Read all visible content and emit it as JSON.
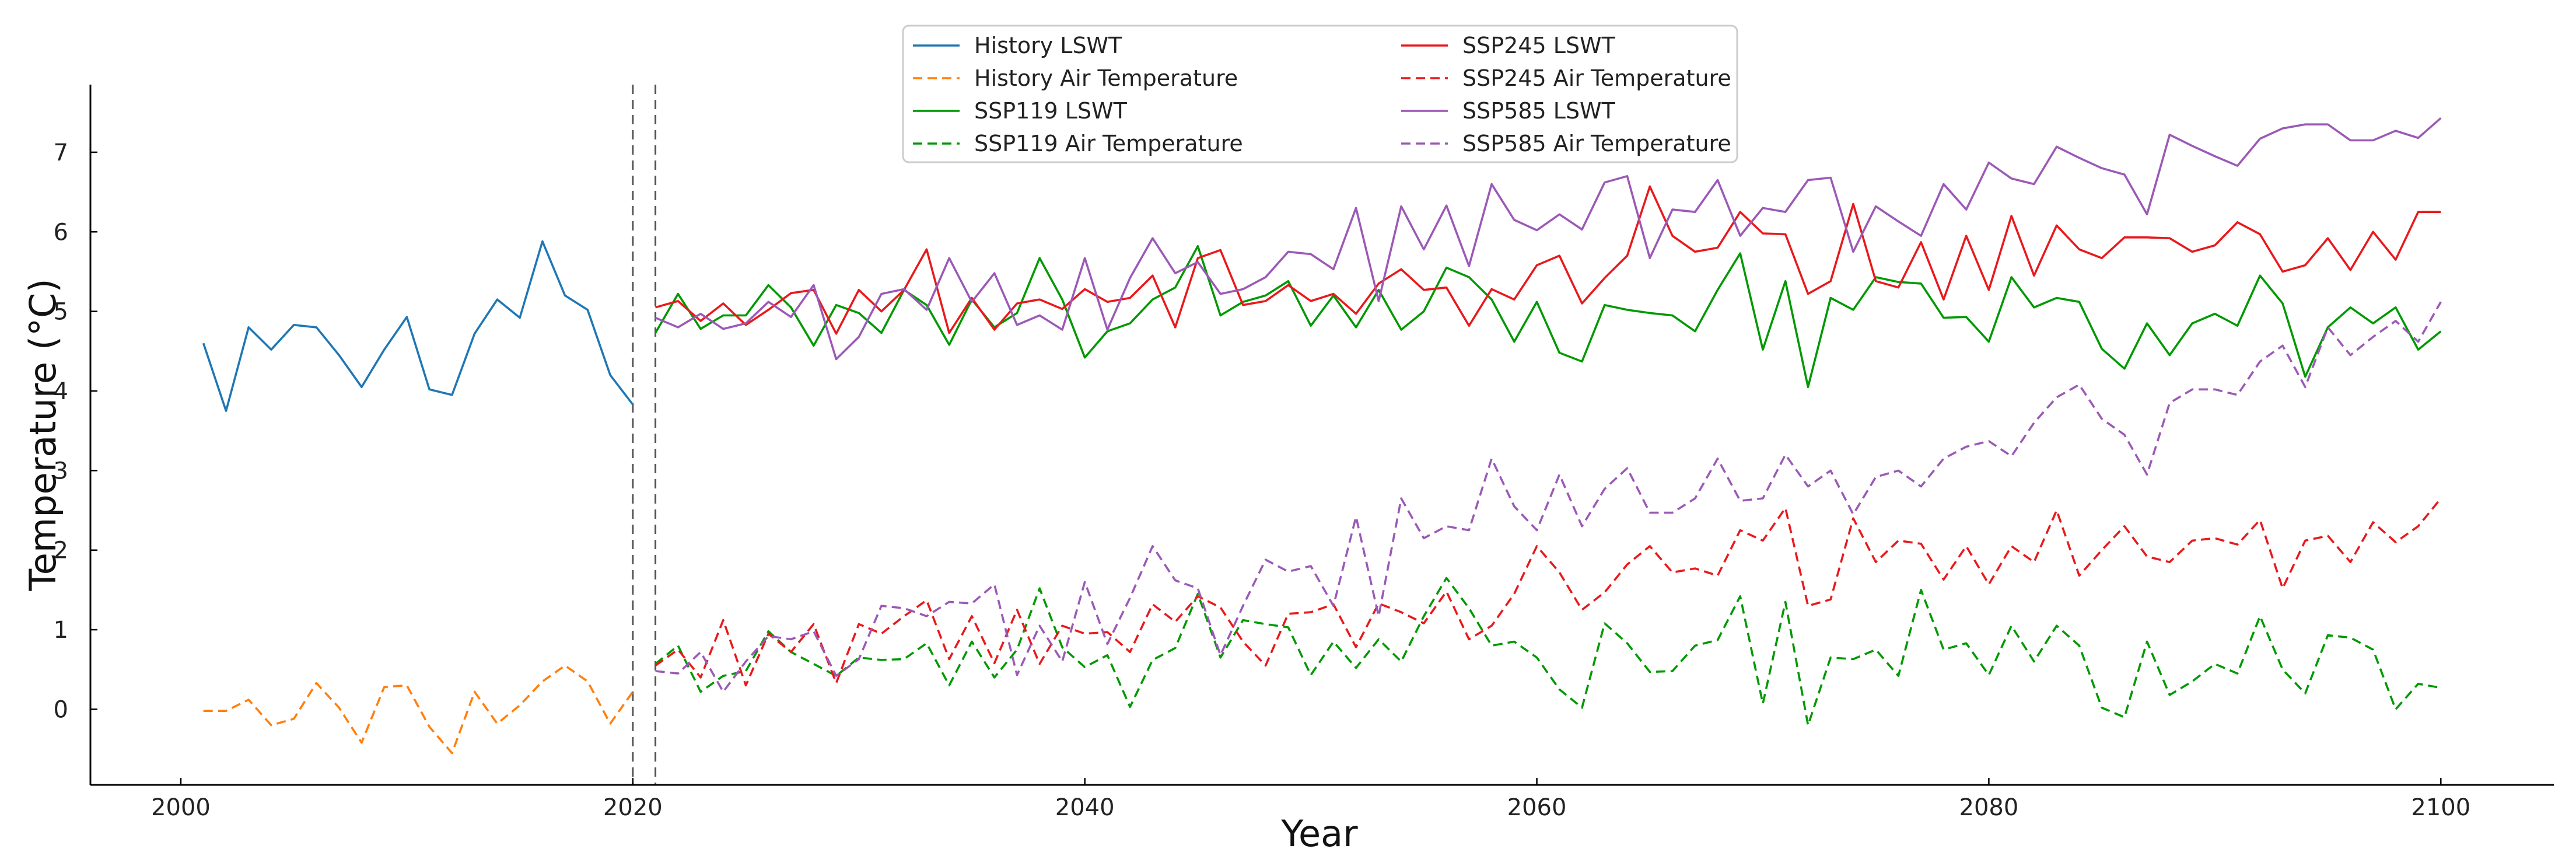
{
  "chart_data": {
    "type": "line",
    "title": "",
    "xlabel": "Year",
    "ylabel": "Temperature (°C)",
    "xlim": [
      1996,
      2105
    ],
    "ylim": [
      -0.95,
      7.85
    ],
    "xticks": [
      2000,
      2020,
      2040,
      2060,
      2080,
      2100
    ],
    "yticks": [
      0,
      1,
      2,
      3,
      4,
      5,
      6,
      7
    ],
    "vlines": [
      2020,
      2021
    ],
    "legend": {
      "location": "upper-center",
      "columns": 2
    },
    "series": [
      {
        "name": "History LSWT",
        "color": "#1f77b4",
        "style": "solid",
        "start_year": 2001,
        "values": [
          4.6,
          3.75,
          4.8,
          4.52,
          4.83,
          4.8,
          4.45,
          4.05,
          4.52,
          4.93,
          4.02,
          3.95,
          4.72,
          5.15,
          4.92,
          5.88,
          5.2,
          5.02,
          4.2,
          3.83
        ]
      },
      {
        "name": "History Air Temperature",
        "color": "#ff7f0e",
        "style": "dashed",
        "start_year": 2001,
        "values": [
          -0.02,
          -0.02,
          0.12,
          -0.2,
          -0.12,
          0.33,
          0.02,
          -0.42,
          0.28,
          0.3,
          -0.22,
          -0.55,
          0.22,
          -0.18,
          0.05,
          0.35,
          0.55,
          0.35,
          -0.18,
          0.22
        ]
      },
      {
        "name": "SSP119 LSWT",
        "color": "#009900",
        "style": "solid",
        "start_year": 2021,
        "values": [
          4.73,
          5.22,
          4.78,
          4.95,
          4.95,
          5.33,
          5.05,
          4.57,
          5.08,
          4.98,
          4.73,
          5.27,
          5.08,
          4.58,
          5.15,
          4.8,
          4.98,
          5.67,
          5.15,
          4.42,
          4.75,
          4.85,
          5.15,
          5.3,
          5.82,
          4.95,
          5.12,
          5.2,
          5.38,
          4.82,
          5.2,
          4.8,
          5.27,
          4.77,
          5.0,
          5.55,
          5.43,
          5.15,
          4.62,
          5.12,
          4.48,
          4.37,
          5.08,
          5.02,
          4.98,
          4.95,
          4.75,
          5.27,
          5.73,
          4.52,
          5.38,
          4.05,
          5.17,
          5.02,
          5.43,
          5.37,
          5.35,
          4.92,
          4.93,
          4.62,
          5.43,
          5.05,
          5.17,
          5.12,
          4.53,
          4.28,
          4.85,
          4.45,
          4.85,
          4.97,
          4.82,
          5.45,
          5.1,
          4.18,
          4.8,
          5.05,
          4.85,
          5.05,
          4.52,
          4.75
        ]
      },
      {
        "name": "SSP119 Air Temperature",
        "color": "#009900",
        "style": "dashed",
        "start_year": 2021,
        "values": [
          0.57,
          0.8,
          0.22,
          0.42,
          0.48,
          0.98,
          0.72,
          0.57,
          0.42,
          0.65,
          0.62,
          0.63,
          0.83,
          0.3,
          0.85,
          0.4,
          0.75,
          1.52,
          0.78,
          0.53,
          0.68,
          0.03,
          0.62,
          0.77,
          1.45,
          0.65,
          1.12,
          1.07,
          1.03,
          0.43,
          0.85,
          0.52,
          0.88,
          0.6,
          1.17,
          1.65,
          1.27,
          0.8,
          0.85,
          0.65,
          0.25,
          0.02,
          1.08,
          0.83,
          0.47,
          0.48,
          0.8,
          0.87,
          1.42,
          0.07,
          1.35,
          -0.2,
          0.65,
          0.63,
          0.75,
          0.42,
          1.5,
          0.75,
          0.83,
          0.43,
          1.05,
          0.6,
          1.05,
          0.8,
          0.02,
          -0.1,
          0.85,
          0.18,
          0.35,
          0.57,
          0.45,
          1.17,
          0.5,
          0.2,
          0.93,
          0.9,
          0.75,
          0.0,
          0.32,
          0.27
        ]
      },
      {
        "name": "SSP245 LSWT",
        "color": "#e8191c",
        "style": "solid",
        "start_year": 2021,
        "values": [
          5.05,
          5.13,
          4.88,
          5.1,
          4.83,
          5.02,
          5.23,
          5.27,
          4.72,
          5.27,
          5.0,
          5.27,
          5.78,
          4.73,
          5.17,
          4.77,
          5.1,
          5.15,
          5.03,
          5.28,
          5.12,
          5.17,
          5.45,
          4.8,
          5.67,
          5.77,
          5.08,
          5.13,
          5.33,
          5.13,
          5.22,
          4.97,
          5.35,
          5.53,
          5.27,
          5.3,
          4.82,
          5.28,
          5.15,
          5.58,
          5.7,
          5.1,
          5.42,
          5.7,
          6.57,
          5.95,
          5.75,
          5.8,
          6.25,
          5.98,
          5.97,
          5.22,
          5.38,
          6.35,
          5.38,
          5.3,
          5.87,
          5.15,
          5.95,
          5.27,
          6.2,
          5.45,
          6.08,
          5.78,
          5.67,
          5.93,
          5.93,
          5.92,
          5.75,
          5.83,
          6.12,
          5.97,
          5.5,
          5.58,
          5.92,
          5.52,
          6.0,
          5.65,
          6.25,
          6.25
        ]
      },
      {
        "name": "SSP245 Air Temperature",
        "color": "#e8191c",
        "style": "dashed",
        "start_year": 2021,
        "values": [
          0.55,
          0.75,
          0.4,
          1.12,
          0.3,
          0.95,
          0.72,
          1.07,
          0.33,
          1.07,
          0.95,
          1.17,
          1.37,
          0.63,
          1.17,
          0.58,
          1.25,
          0.57,
          1.05,
          0.95,
          0.97,
          0.72,
          1.32,
          1.1,
          1.42,
          1.28,
          0.85,
          0.55,
          1.2,
          1.22,
          1.32,
          0.78,
          1.33,
          1.22,
          1.08,
          1.48,
          0.88,
          1.05,
          1.45,
          2.05,
          1.72,
          1.25,
          1.47,
          1.82,
          2.05,
          1.72,
          1.77,
          1.68,
          2.25,
          2.12,
          2.53,
          1.3,
          1.38,
          2.4,
          1.85,
          2.12,
          2.08,
          1.63,
          2.05,
          1.57,
          2.05,
          1.85,
          2.5,
          1.68,
          2.0,
          2.3,
          1.92,
          1.85,
          2.12,
          2.15,
          2.07,
          2.38,
          1.52,
          2.12,
          2.18,
          1.85,
          2.35,
          2.1,
          2.3,
          2.65
        ]
      },
      {
        "name": "SSP585 LSWT",
        "color": "#9b59b6",
        "style": "solid",
        "start_year": 2021,
        "values": [
          4.92,
          4.8,
          4.97,
          4.78,
          4.85,
          5.12,
          4.93,
          5.33,
          4.4,
          4.68,
          5.22,
          5.28,
          5.02,
          5.67,
          5.12,
          5.48,
          4.83,
          4.95,
          4.77,
          5.67,
          4.77,
          5.42,
          5.92,
          5.48,
          5.62,
          5.22,
          5.28,
          5.43,
          5.75,
          5.72,
          5.53,
          6.3,
          5.13,
          6.32,
          5.78,
          6.33,
          5.57,
          6.6,
          6.15,
          6.02,
          6.22,
          6.03,
          6.62,
          6.7,
          5.67,
          6.28,
          6.25,
          6.65,
          5.95,
          6.3,
          6.25,
          6.65,
          6.68,
          5.75,
          6.32,
          6.13,
          5.95,
          6.6,
          6.28,
          6.87,
          6.67,
          6.6,
          7.07,
          6.93,
          6.8,
          6.72,
          6.22,
          7.22,
          7.08,
          6.95,
          6.83,
          7.17,
          7.3,
          7.35,
          7.35,
          7.15,
          7.15,
          7.27,
          7.18,
          7.43
        ]
      },
      {
        "name": "SSP585 Air Temperature",
        "color": "#9b59b6",
        "style": "dashed",
        "start_year": 2021,
        "values": [
          0.48,
          0.45,
          0.72,
          0.22,
          0.6,
          0.92,
          0.88,
          0.98,
          0.42,
          0.63,
          1.3,
          1.27,
          1.17,
          1.35,
          1.33,
          1.57,
          0.43,
          1.05,
          0.6,
          1.6,
          0.82,
          1.4,
          2.05,
          1.62,
          1.52,
          0.68,
          1.3,
          1.88,
          1.73,
          1.8,
          1.3,
          2.42,
          1.17,
          2.65,
          2.15,
          2.3,
          2.25,
          3.15,
          2.55,
          2.25,
          2.95,
          2.3,
          2.77,
          3.03,
          2.47,
          2.47,
          2.65,
          3.15,
          2.62,
          2.65,
          3.2,
          2.8,
          3.0,
          2.45,
          2.92,
          3.0,
          2.8,
          3.15,
          3.3,
          3.37,
          3.18,
          3.6,
          3.92,
          4.08,
          3.65,
          3.45,
          2.95,
          3.85,
          4.02,
          4.02,
          3.95,
          4.37,
          4.57,
          4.05,
          4.8,
          4.45,
          4.68,
          4.88,
          4.62,
          5.12
        ]
      }
    ]
  }
}
